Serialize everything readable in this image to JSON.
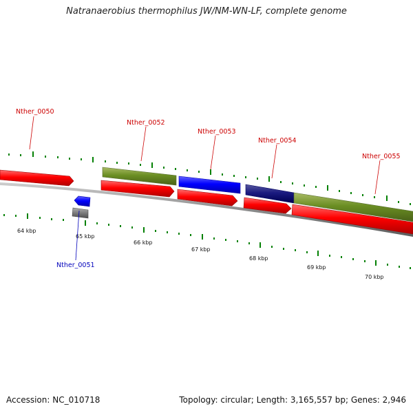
{
  "title": "Natranaerobius thermophilus JW/NM-WN-LF, complete genome",
  "footer": {
    "accession": "Accession: NC_010718",
    "genome_info": "Topology: circular; Length: 3,165,557 bp; Genes: 2,946"
  },
  "scale_labels": [
    "64 kbp",
    "65 kbp",
    "66 kbp",
    "67 kbp",
    "68 kbp",
    "69 kbp",
    "70 kbp"
  ],
  "gene_labels": [
    {
      "text": "Nther_0050",
      "color": "#cc0000"
    },
    {
      "text": "Nther_0051",
      "color": "#0000bb"
    },
    {
      "text": "Nther_0052",
      "color": "#cc0000"
    },
    {
      "text": "Nther_0053",
      "color": "#cc0000"
    },
    {
      "text": "Nther_0054",
      "color": "#cc0000"
    },
    {
      "text": "Nther_0055",
      "color": "#cc0000"
    }
  ],
  "colors": {
    "cds_forward": "#ff0000",
    "cds_reverse": "#0000ee",
    "rna": "#808080",
    "cog_green": "#6b8e23",
    "cog_blue": "#0000ff",
    "cog_navy": "#000080",
    "tick_green": "#008000",
    "backbone": "#8c8c8c"
  }
}
